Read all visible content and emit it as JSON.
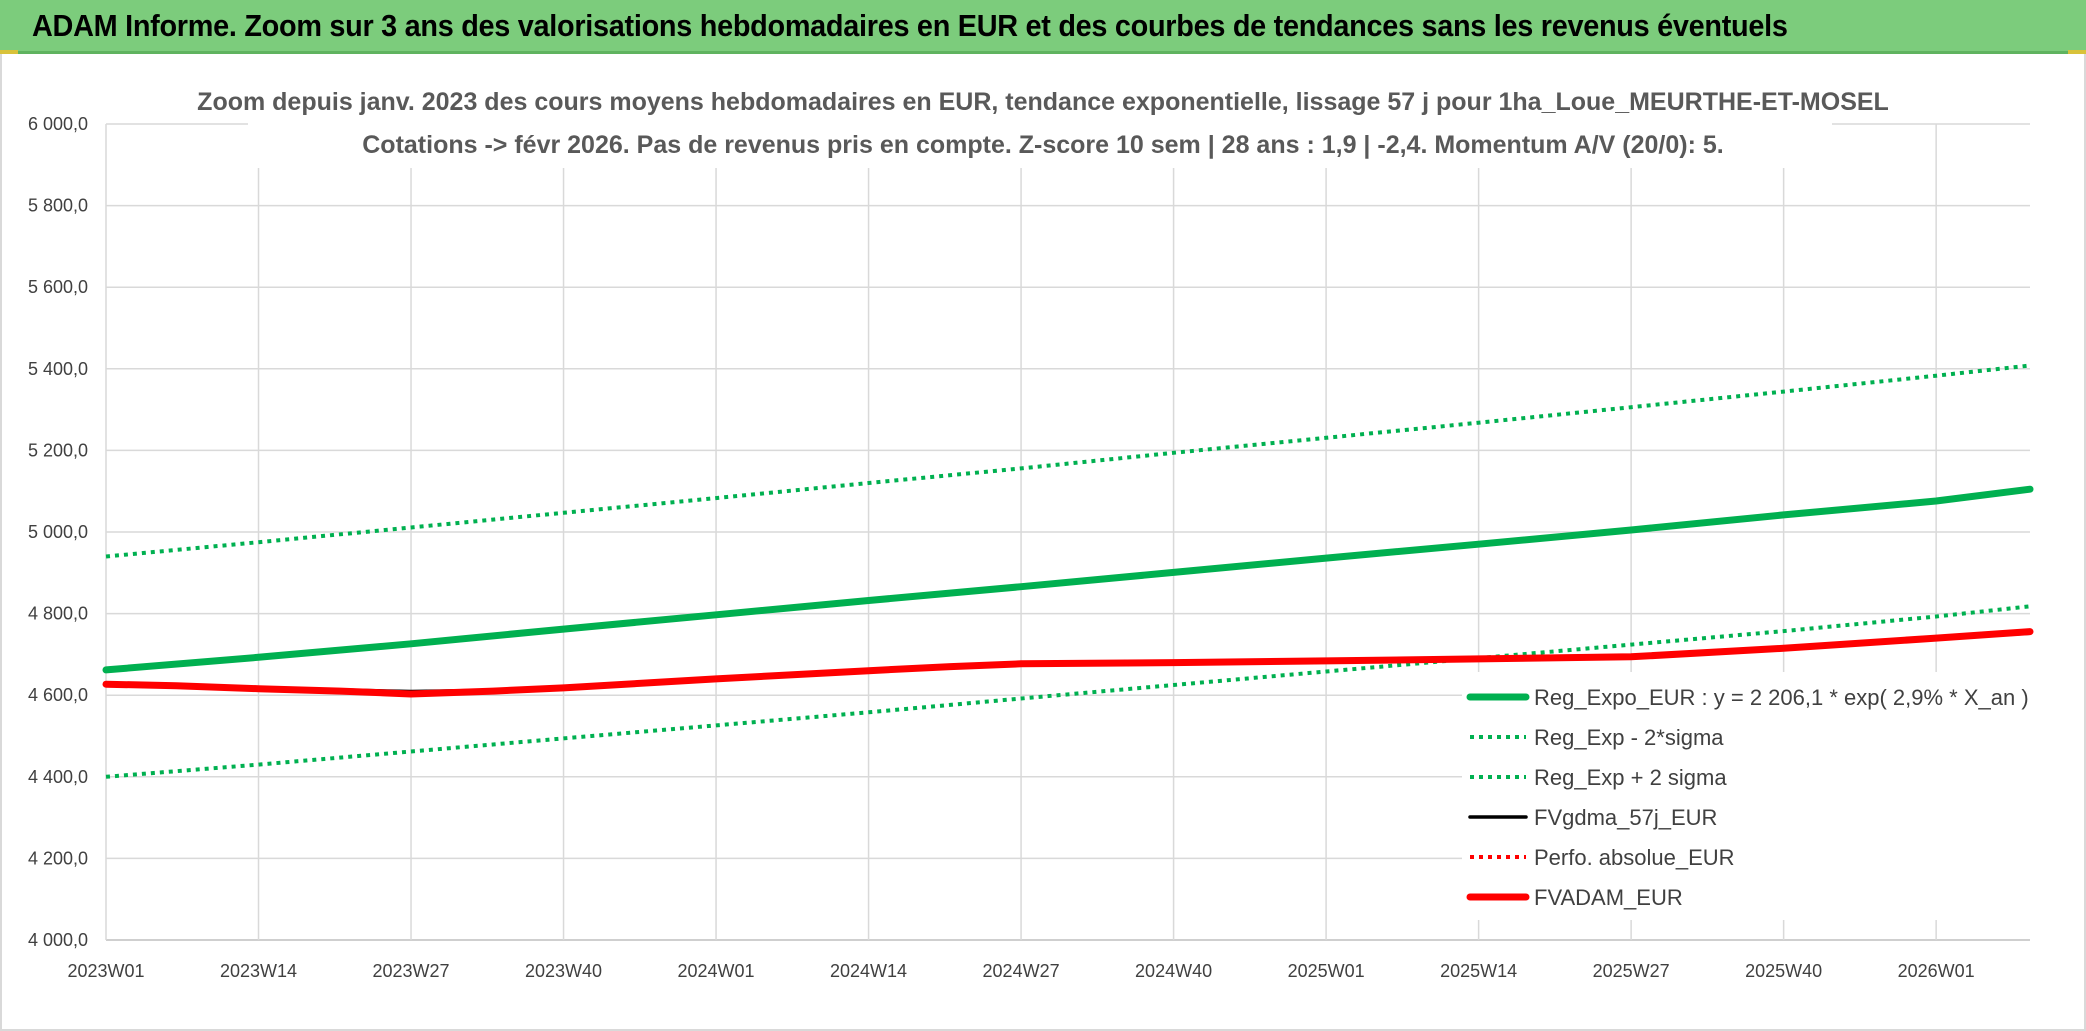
{
  "banner": {
    "title": "ADAM Informe. Zoom sur 3 ans des valorisations hebdomadaires en EUR et des courbes de tendances sans les revenus éventuels",
    "color": "#7ccc7c"
  },
  "chart_data": {
    "type": "line",
    "title_lines": [
      "Zoom depuis janv. 2023 des cours moyens hebdomadaires en EUR, tendance exponentielle, lissage 57 j pour 1ha_Loue_MEURTHE-ET-MOSEL",
      "Cotations -> févr 2026. Pas de revenus pris en compte. Z-score 10 sem | 28 ans : 1,9 | -2,4. Momentum A/V (20/0): 5."
    ],
    "xlabel": "",
    "ylabel": "",
    "x_tick_labels": [
      "2023W01",
      "2023W14",
      "2023W27",
      "2023W40",
      "2024W01",
      "2024W14",
      "2024W27",
      "2024W40",
      "2025W01",
      "2025W14",
      "2025W27",
      "2025W40",
      "2026W01"
    ],
    "x_range_weeks": [
      0,
      164
    ],
    "y_ticks": [
      4000,
      4200,
      4400,
      4600,
      4800,
      5000,
      5200,
      5400,
      5600,
      5800,
      6000
    ],
    "y_tick_labels": [
      "4 000,0",
      "4 200,0",
      "4 400,0",
      "4 600,0",
      "4 800,0",
      "5 000,0",
      "5 200,0",
      "5 400,0",
      "5 600,0",
      "5 800,0",
      "6 000,0"
    ],
    "ylim": [
      4000,
      6000
    ],
    "grid": true,
    "legend_position": "bottom-right",
    "series": [
      {
        "name": "Reg_Expo_EUR : y = 2 206,1 * exp( 2,9% *  X_an )",
        "color": "#00b050",
        "style": "solid-thick",
        "points": [
          [
            0,
            4662
          ],
          [
            13,
            4693
          ],
          [
            26,
            4726
          ],
          [
            39,
            4762
          ],
          [
            52,
            4797
          ],
          [
            65,
            4832
          ],
          [
            78,
            4866
          ],
          [
            91,
            4901
          ],
          [
            104,
            4936
          ],
          [
            117,
            4970
          ],
          [
            130,
            5005
          ],
          [
            143,
            5042
          ],
          [
            156,
            5076
          ],
          [
            164,
            5105
          ]
        ]
      },
      {
        "name": "Reg_Exp - 2*sigma",
        "color": "#00b050",
        "style": "dotted",
        "points": [
          [
            0,
            4400
          ],
          [
            13,
            4430
          ],
          [
            26,
            4462
          ],
          [
            39,
            4494
          ],
          [
            52,
            4526
          ],
          [
            65,
            4558
          ],
          [
            78,
            4592
          ],
          [
            91,
            4625
          ],
          [
            104,
            4658
          ],
          [
            117,
            4691
          ],
          [
            130,
            4724
          ],
          [
            143,
            4757
          ],
          [
            156,
            4793
          ],
          [
            164,
            4818
          ]
        ]
      },
      {
        "name": "Reg_Exp + 2 sigma",
        "color": "#00b050",
        "style": "dotted",
        "points": [
          [
            0,
            4940
          ],
          [
            13,
            4975
          ],
          [
            26,
            5011
          ],
          [
            39,
            5047
          ],
          [
            52,
            5083
          ],
          [
            65,
            5120
          ],
          [
            78,
            5156
          ],
          [
            91,
            5194
          ],
          [
            104,
            5231
          ],
          [
            117,
            5268
          ],
          [
            130,
            5306
          ],
          [
            143,
            5344
          ],
          [
            156,
            5383
          ],
          [
            164,
            5408
          ]
        ]
      },
      {
        "name": "FVgdma_57j_EUR",
        "color": "#000000",
        "style": "solid-thin",
        "points": [
          [
            0,
            4627
          ],
          [
            6,
            4623
          ],
          [
            13,
            4617
          ],
          [
            20,
            4613
          ],
          [
            26,
            4609
          ],
          [
            33,
            4612
          ],
          [
            39,
            4620
          ],
          [
            52,
            4641
          ],
          [
            65,
            4658
          ],
          [
            72,
            4668
          ],
          [
            78,
            4678
          ],
          [
            91,
            4680
          ],
          [
            104,
            4684
          ],
          [
            117,
            4688
          ],
          [
            130,
            4692
          ],
          [
            143,
            4713
          ],
          [
            156,
            4738
          ],
          [
            164,
            4752
          ]
        ]
      },
      {
        "name": "Perfo. absolue_EUR",
        "color": "#ff0000",
        "style": "dotted",
        "points": [
          [
            0,
            4627
          ],
          [
            6,
            4623
          ],
          [
            13,
            4616
          ],
          [
            20,
            4610
          ],
          [
            26,
            4603
          ],
          [
            33,
            4610
          ],
          [
            39,
            4618
          ],
          [
            52,
            4640
          ],
          [
            65,
            4660
          ],
          [
            72,
            4670
          ],
          [
            78,
            4677
          ],
          [
            91,
            4680
          ],
          [
            104,
            4684
          ],
          [
            117,
            4689
          ],
          [
            130,
            4694
          ],
          [
            143,
            4715
          ],
          [
            156,
            4740
          ],
          [
            164,
            4756
          ]
        ]
      },
      {
        "name": "FVADAM_EUR",
        "color": "#ff0000",
        "style": "solid-thick",
        "points": [
          [
            0,
            4627
          ],
          [
            6,
            4623
          ],
          [
            13,
            4616
          ],
          [
            20,
            4610
          ],
          [
            26,
            4603
          ],
          [
            33,
            4610
          ],
          [
            39,
            4618
          ],
          [
            52,
            4640
          ],
          [
            65,
            4660
          ],
          [
            72,
            4670
          ],
          [
            78,
            4677
          ],
          [
            91,
            4680
          ],
          [
            104,
            4684
          ],
          [
            117,
            4689
          ],
          [
            130,
            4694
          ],
          [
            143,
            4715
          ],
          [
            156,
            4740
          ],
          [
            164,
            4756
          ]
        ]
      }
    ]
  }
}
